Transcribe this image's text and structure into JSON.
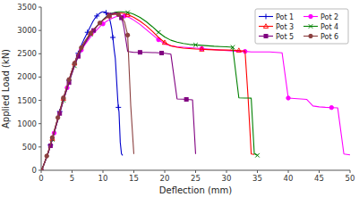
{
  "chart_data": {
    "type": "line",
    "xlabel": "Deflection (mm)",
    "ylabel": "Applied Load (kN)",
    "xlim": [
      0,
      50
    ],
    "ylim": [
      0,
      3500
    ],
    "xticks": [
      0,
      5,
      10,
      15,
      20,
      25,
      30,
      35,
      40,
      45,
      50
    ],
    "yticks": [
      0,
      500,
      1000,
      1500,
      2000,
      2500,
      3000,
      3500
    ],
    "grid": false,
    "legend": "upper right",
    "series": [
      {
        "name": "Pot 1",
        "color": "#0000CC",
        "marker": "plus",
        "x": [
          0,
          0.3,
          0.6,
          0.9,
          1.2,
          1.5,
          1.8,
          2.1,
          2.4,
          2.7,
          3.0,
          3.3,
          3.6,
          3.9,
          4.2,
          4.5,
          4.8,
          5.1,
          5.4,
          5.7,
          6.0,
          6.3,
          6.6,
          6.9,
          7.2,
          7.5,
          7.8,
          8.1,
          8.4,
          8.7,
          9.0,
          9.3,
          9.6,
          9.9,
          10.2,
          10.5,
          10.8,
          11.0,
          11.2,
          11.4,
          11.6,
          11.8,
          12.0,
          12.2,
          12.4,
          12.5,
          12.6,
          12.8,
          13.0,
          13.2
        ],
        "values": [
          0,
          80,
          180,
          290,
          410,
          540,
          680,
          820,
          970,
          1110,
          1260,
          1400,
          1540,
          1670,
          1800,
          1930,
          2060,
          2180,
          2300,
          2410,
          2510,
          2610,
          2710,
          2800,
          2880,
          2960,
          3040,
          3120,
          3200,
          3260,
          3310,
          3350,
          3380,
          3400,
          3400,
          3380,
          3340,
          3280,
          3180,
          3050,
          2850,
          2600,
          2400,
          1950,
          1500,
          1350,
          1250,
          600,
          350,
          320
        ]
      },
      {
        "name": "Pot 2",
        "color": "#FF00FF",
        "marker": "circle",
        "x": [
          0,
          0.3,
          0.6,
          0.9,
          1.2,
          1.5,
          1.8,
          2.1,
          2.4,
          2.7,
          3.0,
          3.3,
          3.6,
          3.9,
          4.2,
          4.5,
          4.8,
          5.1,
          5.4,
          5.7,
          6.0,
          6.5,
          7.0,
          7.5,
          8.0,
          8.5,
          9.0,
          9.5,
          10.0,
          10.5,
          11.0,
          11.5,
          12.0,
          12.5,
          13.0,
          13.5,
          14.0,
          14.5,
          15.0,
          16.0,
          17.0,
          18.0,
          19.0,
          20.0,
          21.0,
          22.0,
          23.0,
          24.0,
          25.0,
          26.0,
          27.0,
          28.0,
          29.0,
          30.0,
          31.0,
          32.0,
          33.0,
          34.0,
          35.0,
          36.0,
          37.0,
          38.0,
          39.0,
          40.0,
          41.0,
          42.0,
          43.0,
          44.0,
          45.0,
          46.0,
          47.0,
          48.0,
          49.0,
          50.0
        ],
        "values": [
          0,
          80,
          180,
          290,
          400,
          530,
          660,
          800,
          950,
          1090,
          1230,
          1370,
          1510,
          1640,
          1770,
          1900,
          2020,
          2140,
          2250,
          2360,
          2460,
          2580,
          2680,
          2770,
          2860,
          2940,
          3010,
          3080,
          3140,
          3190,
          3230,
          3260,
          3290,
          3310,
          3320,
          3310,
          3290,
          3260,
          3220,
          3130,
          3020,
          2910,
          2800,
          2710,
          2670,
          2650,
          2640,
          2630,
          2620,
          2610,
          2600,
          2590,
          2580,
          2570,
          2560,
          2550,
          2550,
          2540,
          2540,
          2540,
          2540,
          2530,
          2520,
          1550,
          1540,
          1530,
          1520,
          1380,
          1360,
          1350,
          1345,
          1340,
          350,
          330
        ]
      },
      {
        "name": "Pot 3",
        "color": "#FF0000",
        "marker": "triangle",
        "x": [
          0,
          0.3,
          0.6,
          0.9,
          1.2,
          1.5,
          1.8,
          2.1,
          2.4,
          2.7,
          3.0,
          3.3,
          3.6,
          3.9,
          4.2,
          4.5,
          4.8,
          5.1,
          5.4,
          5.7,
          6.0,
          6.5,
          7.0,
          7.5,
          8.0,
          8.5,
          9.0,
          9.5,
          10.0,
          10.5,
          11.0,
          11.5,
          12.0,
          12.5,
          13.0,
          13.5,
          14.0,
          15.0,
          16.0,
          17.0,
          18.0,
          19.0,
          20.0,
          21.0,
          22.0,
          23.0,
          24.0,
          25.0,
          26.0,
          27.0,
          28.0,
          29.0,
          30.0,
          31.0,
          32.0,
          32.5,
          33.0,
          33.5,
          34.0,
          34.5
        ],
        "values": [
          0,
          80,
          185,
          295,
          415,
          545,
          680,
          825,
          970,
          1110,
          1260,
          1400,
          1540,
          1670,
          1800,
          1930,
          2060,
          2180,
          2295,
          2400,
          2510,
          2640,
          2750,
          2850,
          2940,
          3020,
          3090,
          3160,
          3220,
          3270,
          3310,
          3340,
          3360,
          3370,
          3370,
          3360,
          3340,
          3280,
          3200,
          3100,
          2980,
          2850,
          2740,
          2670,
          2640,
          2620,
          2610,
          2600,
          2595,
          2590,
          2585,
          2580,
          2580,
          2575,
          2570,
          2560,
          2560,
          1555,
          350,
          340
        ]
      },
      {
        "name": "Pot 4",
        "color": "#008000",
        "marker": "x",
        "x": [
          0,
          0.3,
          0.6,
          0.9,
          1.2,
          1.5,
          1.8,
          2.1,
          2.4,
          2.7,
          3.0,
          3.3,
          3.6,
          3.9,
          4.2,
          4.5,
          4.8,
          5.1,
          5.4,
          5.7,
          6.0,
          6.5,
          7.0,
          7.5,
          8.0,
          8.5,
          9.0,
          9.5,
          10.0,
          10.5,
          11.0,
          11.5,
          12.0,
          12.5,
          13.0,
          13.5,
          14.0,
          14.5,
          15.0,
          16.0,
          17.0,
          18.0,
          19.0,
          20.0,
          21.0,
          22.0,
          23.0,
          24.0,
          25.0,
          26.0,
          27.0,
          28.0,
          29.0,
          30.0,
          31.0,
          32.0,
          33.0,
          33.5,
          34.0,
          34.5,
          35.0
        ],
        "values": [
          0,
          75,
          175,
          285,
          400,
          525,
          660,
          800,
          950,
          1085,
          1225,
          1365,
          1500,
          1635,
          1765,
          1890,
          2010,
          2130,
          2240,
          2350,
          2450,
          2590,
          2710,
          2820,
          2920,
          3010,
          3090,
          3160,
          3230,
          3290,
          3340,
          3370,
          3390,
          3400,
          3400,
          3395,
          3385,
          3370,
          3345,
          3280,
          3190,
          3080,
          2960,
          2860,
          2790,
          2750,
          2720,
          2700,
          2690,
          2680,
          2670,
          2660,
          2655,
          2650,
          2640,
          1555,
          1550,
          1548,
          1546,
          355,
          320
        ]
      },
      {
        "name": "Pot 5",
        "color": "#800080",
        "marker": "square",
        "x": [
          0,
          0.3,
          0.6,
          0.9,
          1.2,
          1.5,
          1.8,
          2.1,
          2.4,
          2.7,
          3.0,
          3.3,
          3.6,
          3.9,
          4.2,
          4.5,
          4.8,
          5.1,
          5.4,
          5.7,
          6.0,
          6.5,
          7.0,
          7.5,
          8.0,
          8.5,
          9.0,
          9.5,
          10.0,
          10.5,
          11.0,
          11.5,
          12.0,
          12.5,
          12.8,
          13.0,
          13.2,
          13.4,
          14.0,
          15.0,
          16.0,
          17.0,
          18.0,
          18.5,
          19.0,
          19.5,
          20.0,
          21.0,
          22.0,
          23.0,
          23.5,
          24.0,
          24.5,
          25.0
        ],
        "values": [
          0,
          75,
          175,
          285,
          400,
          525,
          660,
          800,
          945,
          1080,
          1220,
          1360,
          1495,
          1625,
          1755,
          1880,
          2005,
          2120,
          2235,
          2340,
          2445,
          2580,
          2700,
          2810,
          2910,
          3000,
          3080,
          3150,
          3220,
          3280,
          3330,
          3360,
          3380,
          3370,
          3330,
          3270,
          3180,
          3060,
          2550,
          2530,
          2530,
          2530,
          2525,
          2525,
          2520,
          2515,
          2510,
          2490,
          1530,
          1525,
          1520,
          1515,
          1510,
          350
        ]
      },
      {
        "name": "Pot 6",
        "color": "#8B4040",
        "marker": "circle",
        "x": [
          0,
          0.3,
          0.6,
          0.9,
          1.2,
          1.5,
          1.8,
          2.1,
          2.4,
          2.7,
          3.0,
          3.3,
          3.6,
          3.9,
          4.2,
          4.5,
          4.8,
          5.1,
          5.4,
          5.7,
          6.0,
          6.5,
          7.0,
          7.5,
          8.0,
          8.5,
          9.0,
          9.5,
          10.0,
          10.5,
          11.0,
          11.5,
          12.0,
          12.5,
          13.0,
          13.5,
          14.0,
          14.5,
          15.0
        ],
        "values": [
          0,
          80,
          190,
          305,
          430,
          560,
          700,
          845,
          990,
          1130,
          1275,
          1415,
          1555,
          1685,
          1815,
          1945,
          2065,
          2185,
          2295,
          2400,
          2505,
          2630,
          2750,
          2850,
          2940,
          3020,
          3090,
          3160,
          3220,
          3270,
          3310,
          3340,
          3350,
          3340,
          3290,
          3180,
          2900,
          1380,
          350
        ]
      }
    ]
  }
}
